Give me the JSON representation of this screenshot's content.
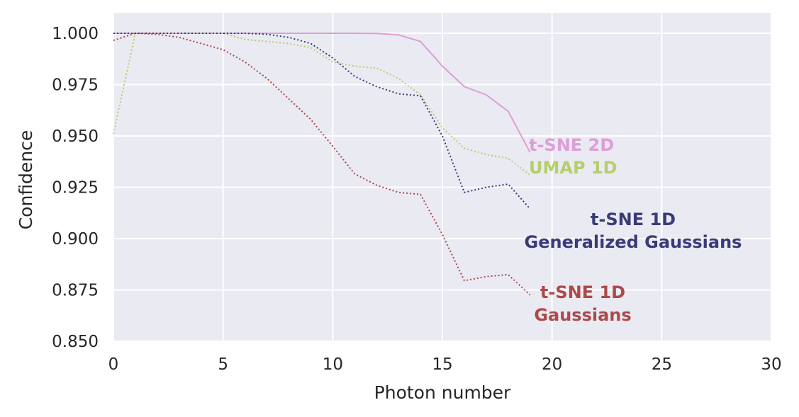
{
  "chart_data": {
    "type": "line",
    "title": "",
    "xlabel": "Photon number",
    "ylabel": "Confidence",
    "xlim": [
      0,
      30
    ],
    "ylim": [
      0.85,
      1.01
    ],
    "xticks": [
      0,
      5,
      10,
      15,
      20,
      25,
      30
    ],
    "xtick_labels": [
      "0",
      "5",
      "10",
      "15",
      "20",
      "25",
      "30"
    ],
    "yticks": [
      0.85,
      0.875,
      0.9,
      0.925,
      0.95,
      0.975,
      1.0
    ],
    "ytick_labels": [
      "0.850",
      "0.875",
      "0.900",
      "0.925",
      "0.950",
      "0.975",
      "1.000"
    ],
    "grid": true,
    "background": "#EAEAF2",
    "legend": "none (series labeled directly on plot)",
    "series": [
      {
        "name": "t-SNE 2D",
        "label_lines": [
          "t-SNE 2D"
        ],
        "color": "#DE9ED6",
        "style": "solid",
        "x": [
          0,
          1,
          2,
          3,
          4,
          5,
          6,
          7,
          8,
          9,
          10,
          11,
          12,
          13,
          14,
          15,
          16,
          17,
          18,
          19
        ],
        "y": [
          1.0,
          1.0,
          1.0,
          1.0,
          1.0,
          1.0,
          1.0,
          1.0,
          1.0,
          1.0,
          1.0,
          1.0,
          0.9999,
          0.9992,
          0.996,
          0.984,
          0.974,
          0.97,
          0.962,
          0.942
        ]
      },
      {
        "name": "UMAP 1D",
        "label_lines": [
          "UMAP 1D"
        ],
        "color": "#B5CF6B",
        "style": "dotted",
        "x": [
          0,
          1,
          2,
          3,
          4,
          5,
          6,
          7,
          8,
          9,
          10,
          11,
          12,
          13,
          14,
          15,
          16,
          17,
          18,
          19
        ],
        "y": [
          0.951,
          1.0,
          1.0,
          1.0,
          1.0,
          1.0,
          0.997,
          0.996,
          0.995,
          0.993,
          0.986,
          0.984,
          0.983,
          0.978,
          0.97,
          0.954,
          0.944,
          0.941,
          0.939,
          0.931
        ]
      },
      {
        "name": "t-SNE 1D Generalized Gaussians",
        "label_lines": [
          "t-SNE 1D",
          "Generalized Gaussians"
        ],
        "color": "#393B79",
        "style": "dotted",
        "x": [
          0,
          1,
          2,
          3,
          4,
          5,
          6,
          7,
          8,
          9,
          10,
          11,
          12,
          13,
          14,
          15,
          16,
          17,
          18,
          19
        ],
        "y": [
          1.0,
          1.0,
          1.0,
          1.0,
          1.0,
          1.0,
          1.0,
          0.9995,
          0.998,
          0.995,
          0.988,
          0.979,
          0.974,
          0.9705,
          0.9695,
          0.95,
          0.9225,
          0.925,
          0.9265,
          0.9145
        ]
      },
      {
        "name": "t-SNE 1D Gaussians",
        "label_lines": [
          "t-SNE 1D",
          "Gaussians"
        ],
        "color": "#AD494A",
        "style": "dotted",
        "x": [
          0,
          1,
          2,
          3,
          4,
          5,
          6,
          7,
          8,
          9,
          10,
          11,
          12,
          13,
          14,
          15,
          16,
          17,
          18,
          19
        ],
        "y": [
          0.9965,
          1.0,
          0.9995,
          0.998,
          0.995,
          0.992,
          0.986,
          0.978,
          0.968,
          0.958,
          0.945,
          0.9315,
          0.926,
          0.9225,
          0.9215,
          0.902,
          0.8795,
          0.8815,
          0.8825,
          0.8725
        ]
      }
    ]
  }
}
